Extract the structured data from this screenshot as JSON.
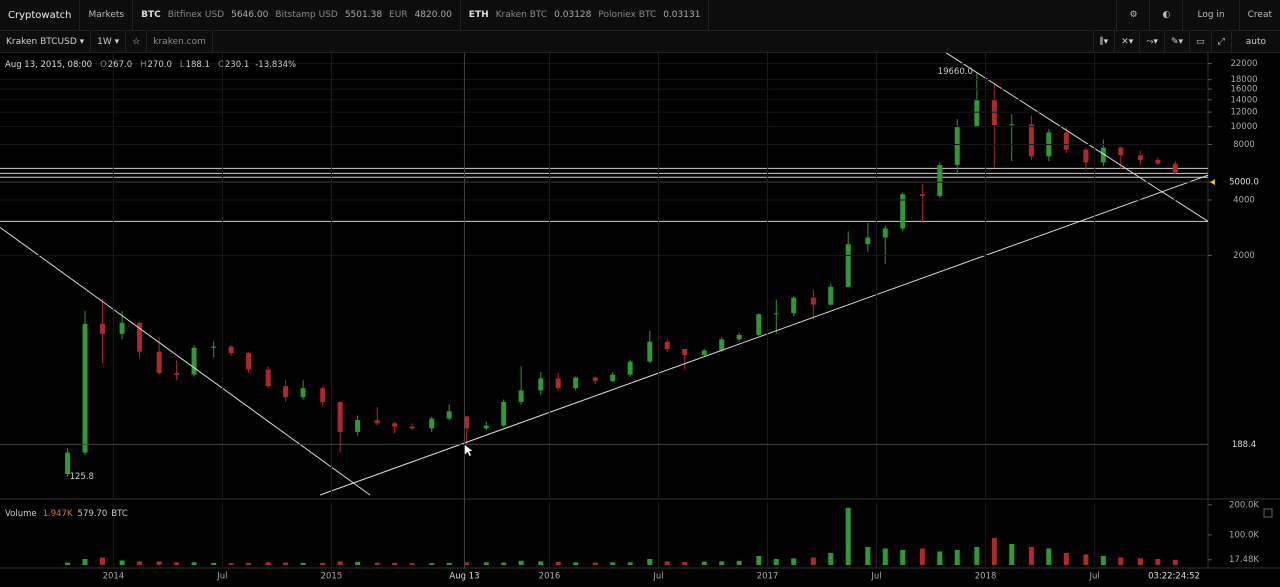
{
  "topbar": {
    "brand": "Cryptowatch",
    "markets": "Markets",
    "btc": {
      "symbol": "BTC",
      "quotes": [
        [
          "Bitfinex USD",
          "5646.00"
        ],
        [
          "Bitstamp USD",
          "5501.38"
        ],
        [
          "EUR",
          "4820.00"
        ]
      ]
    },
    "eth": {
      "symbol": "ETH",
      "quotes": [
        [
          "Kraken BTC",
          "0.03128"
        ],
        [
          "Poloniex BTC",
          "0.03131"
        ]
      ]
    },
    "login": "Log in",
    "create": "Creat"
  },
  "toolbar": {
    "market": "Kraken BTCUSD",
    "interval": "1W",
    "exchange": "kraken.com",
    "scale": "auto"
  },
  "header": {
    "date": "Aug 13, 2015, 08:00",
    "items": [
      [
        "O",
        "267.0"
      ],
      [
        "H",
        "270.0"
      ],
      [
        "L",
        "188.1"
      ],
      [
        "C",
        "230.1"
      ]
    ],
    "change": "-13.834%"
  },
  "volume_header": {
    "name": "Volume",
    "value": "1.947K",
    "value2": "579.70",
    "unit": "BTC"
  },
  "timer": "03:22:24:52",
  "chart_data": [
    {
      "type": "candlestick",
      "up_color": "#2f9a35",
      "down_color": "#b3262a",
      "log_scale": true,
      "grid": true,
      "x": [
        2013.79,
        2013.87,
        2013.95,
        2014.04,
        2014.12,
        2014.21,
        2014.29,
        2014.37,
        2014.46,
        2014.54,
        2014.62,
        2014.71,
        2014.79,
        2014.87,
        2014.96,
        2015.04,
        2015.12,
        2015.21,
        2015.29,
        2015.37,
        2015.46,
        2015.54,
        2015.62,
        2015.71,
        2015.79,
        2015.87,
        2015.96,
        2016.04,
        2016.12,
        2016.21,
        2016.29,
        2016.37,
        2016.46,
        2016.54,
        2016.62,
        2016.71,
        2016.79,
        2016.87,
        2016.96,
        2017.04,
        2017.12,
        2017.21,
        2017.29,
        2017.37,
        2017.46,
        2017.54,
        2017.62,
        2017.71,
        2017.79,
        2017.87,
        2017.96,
        2018.04,
        2018.12,
        2018.21,
        2018.29,
        2018.37,
        2018.46,
        2018.54,
        2018.62,
        2018.71,
        2018.79,
        2018.87
      ],
      "open": [
        130,
        170,
        850,
        750,
        860,
        600,
        460,
        450,
        630,
        640,
        590,
        480,
        390,
        340,
        380,
        320,
        220,
        255,
        245,
        235,
        230,
        260,
        267,
        230,
        238,
        320,
        370,
        430,
        380,
        435,
        415,
        450,
        530,
        680,
        620,
        575,
        610,
        700,
        740,
        960,
        970,
        1180,
        1080,
        1350,
        2300,
        2500,
        2800,
        4300,
        4200,
        6200,
        10000,
        14000,
        10200,
        10300,
        6900,
        9300,
        7500,
        6400,
        7700,
        7000,
        6600,
        6300
      ],
      "high": [
        180,
        1000,
        1160,
        1000,
        870,
        720,
        540,
        650,
        680,
        650,
        600,
        500,
        420,
        420,
        390,
        320,
        270,
        300,
        250,
        245,
        265,
        310,
        270,
        250,
        330,
        500,
        465,
        460,
        440,
        440,
        465,
        540,
        780,
        700,
        620,
        620,
        720,
        760,
        970,
        1150,
        1200,
        1300,
        1400,
        2700,
        3000,
        2900,
        4400,
        4900,
        6400,
        11000,
        19660,
        17200,
        11700,
        11500,
        9700,
        10000,
        7700,
        8500,
        7800,
        7400,
        6800,
        6500
      ],
      "low": [
        125.8,
        165,
        520,
        700,
        550,
        450,
        420,
        440,
        560,
        570,
        460,
        380,
        320,
        330,
        300,
        170,
        210,
        240,
        215,
        225,
        220,
        255,
        188.1,
        225,
        235,
        310,
        350,
        370,
        370,
        400,
        410,
        440,
        520,
        600,
        480,
        570,
        600,
        680,
        730,
        750,
        940,
        900,
        1070,
        1340,
        2100,
        1800,
        2700,
        3000,
        4100,
        5500,
        10000,
        6000,
        6500,
        6600,
        6500,
        7200,
        5800,
        6100,
        5900,
        6200,
        6200,
        5500
      ],
      "close": [
        170,
        850,
        750,
        860,
        600,
        460,
        450,
        630,
        640,
        590,
        480,
        390,
        340,
        380,
        320,
        220,
        255,
        245,
        235,
        230,
        260,
        285,
        230.1,
        238,
        320,
        370,
        430,
        380,
        435,
        415,
        450,
        530,
        680,
        620,
        575,
        610,
        700,
        740,
        960,
        970,
        1180,
        1080,
        1350,
        2300,
        2500,
        2800,
        4300,
        4200,
        6200,
        10000,
        14000,
        10200,
        10300,
        6900,
        9300,
        7500,
        6400,
        7700,
        7000,
        6600,
        6300,
        5646
      ],
      "xlim": [
        2013.48,
        2019.02
      ],
      "ylim": [
        100,
        24500
      ],
      "xticks": [
        {
          "value": 2014,
          "label": "2014"
        },
        {
          "value": 2014.5,
          "label": "Jul"
        },
        {
          "value": 2015,
          "label": "2015"
        },
        {
          "value": 2016,
          "label": "2016"
        },
        {
          "value": 2016.5,
          "label": "Jul"
        },
        {
          "value": 2017,
          "label": "2017"
        },
        {
          "value": 2017.5,
          "label": "Jul"
        },
        {
          "value": 2018,
          "label": "2018"
        },
        {
          "value": 2018.5,
          "label": "Jul"
        }
      ],
      "yticks": [
        2000,
        4000,
        {
          "value": 5000,
          "label": "5000.0"
        },
        8000,
        10000,
        12000,
        14000,
        16000,
        18000,
        22000
      ],
      "hlines": [
        3060,
        5000,
        5310,
        5580,
        5940
      ],
      "trendlines": [
        [
          2013.48,
          2840,
          2015.177,
          100
        ],
        [
          2014.948,
          100,
          2019.02,
          5450
        ],
        [
          2017.814,
          25400,
          2019.02,
          3060
        ]
      ],
      "annotations": [
        {
          "x": 2017.96,
          "value": 19660,
          "label": "19660.0"
        },
        {
          "x": 2013.79,
          "value": 125.8,
          "label": "125.8"
        }
      ],
      "crosshair": {
        "x": 2015.61,
        "x_label": "Aug 13",
        "y": 188.4
      }
    },
    {
      "type": "bar",
      "ylim": [
        0,
        206000
      ],
      "values": [
        8000,
        20000,
        25000,
        15000,
        12000,
        12000,
        9000,
        9000,
        7000,
        6000,
        7000,
        9000,
        8000,
        7000,
        7000,
        12000,
        10000,
        8000,
        7000,
        6000,
        6000,
        7000,
        9000,
        9000,
        8000,
        14000,
        12000,
        10000,
        9000,
        8000,
        9000,
        9000,
        20000,
        12000,
        10000,
        11000,
        12000,
        14000,
        30000,
        20000,
        22000,
        25000,
        40000,
        190000,
        60000,
        55000,
        50000,
        55000,
        45000,
        50000,
        60000,
        90000,
        70000,
        60000,
        55000,
        40000,
        35000,
        30000,
        25000,
        22000,
        20000,
        17480
      ],
      "yticks": [
        {
          "value": 17480,
          "label": "17.48K"
        },
        {
          "value": 100000,
          "label": "100.0K"
        },
        {
          "value": 200000,
          "label": "200.0K"
        }
      ]
    }
  ]
}
